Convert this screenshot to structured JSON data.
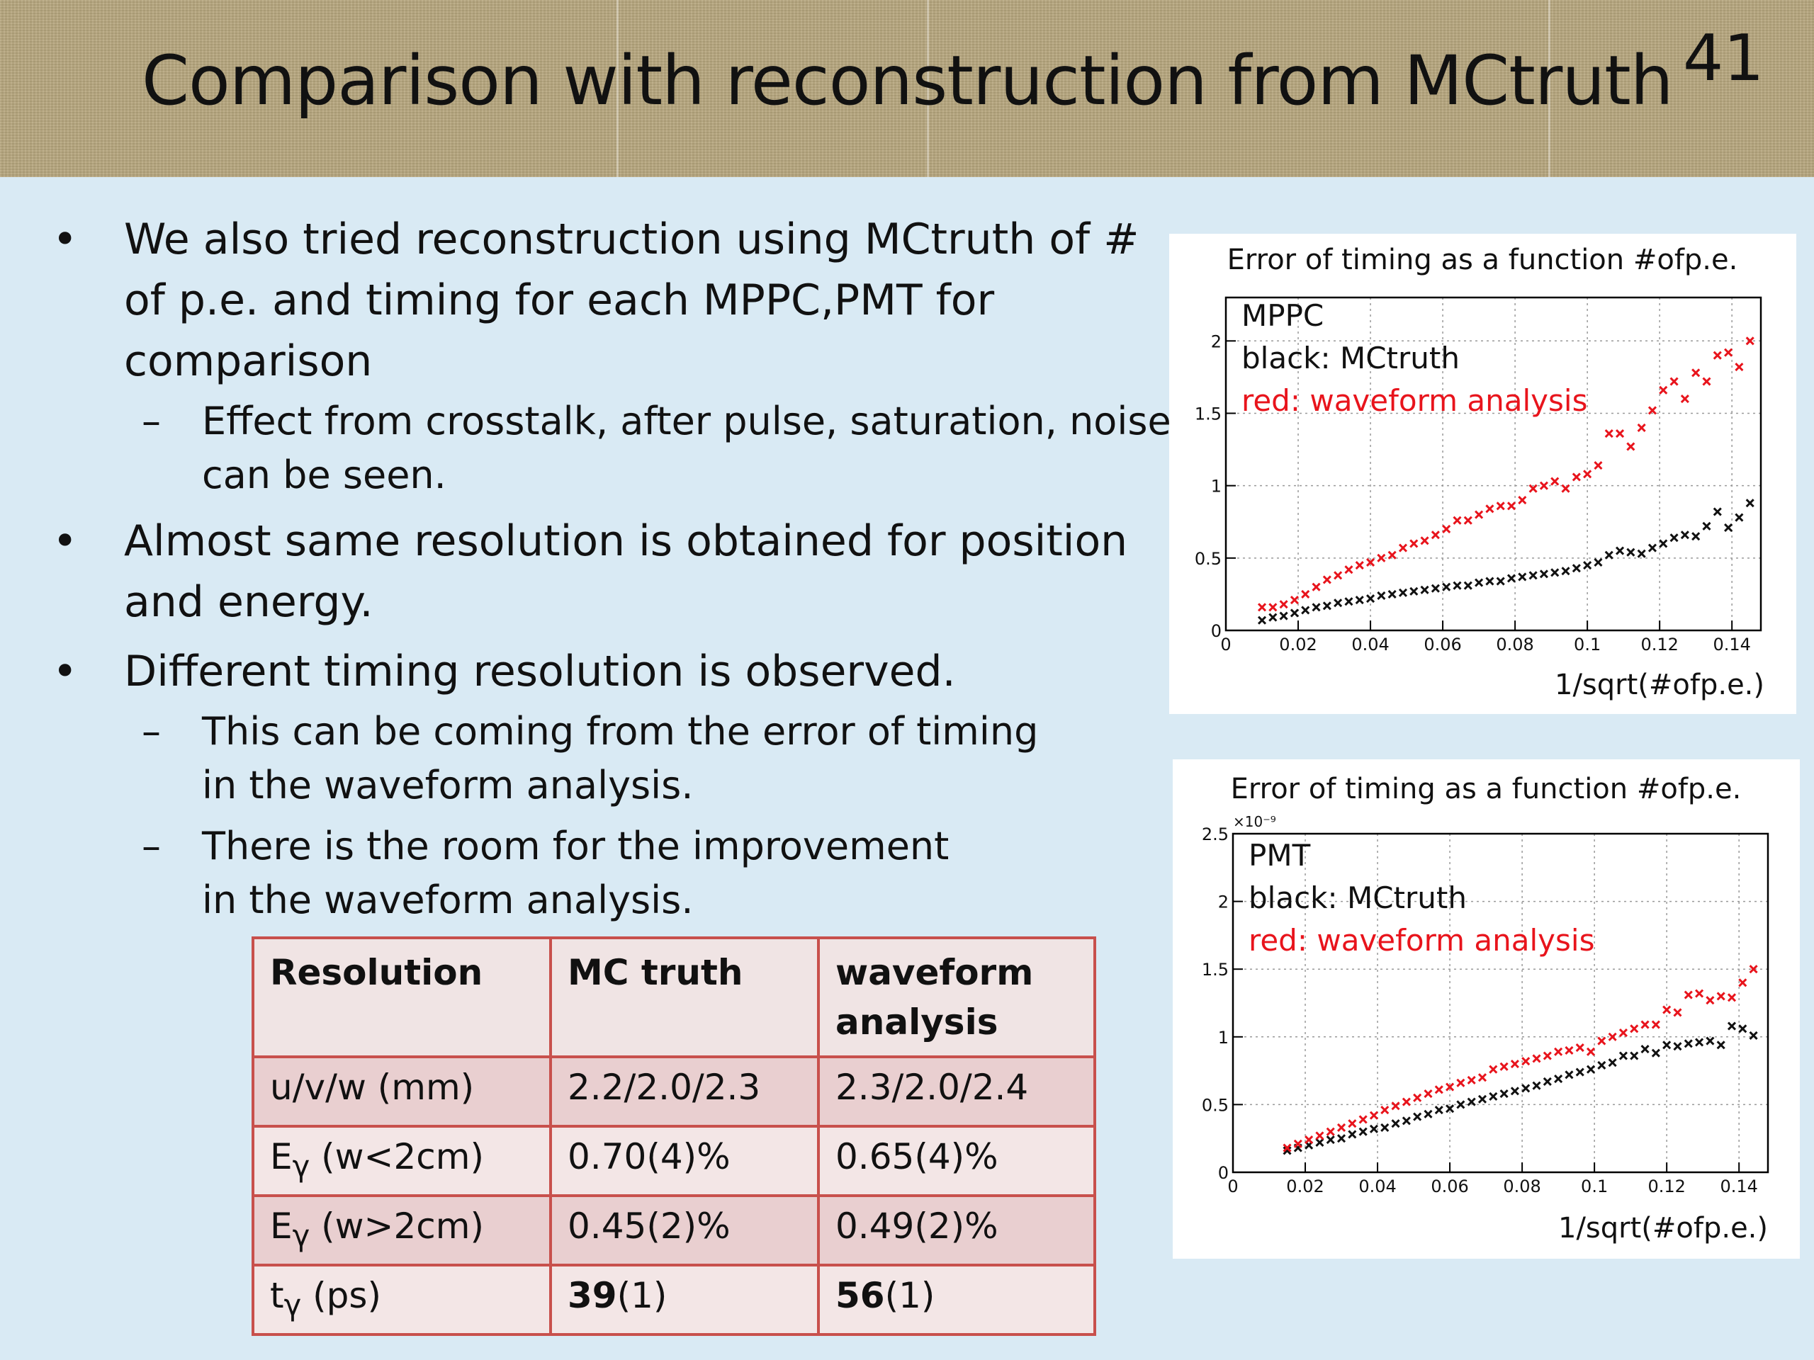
{
  "slide": {
    "title": "Comparison with reconstruction from MCtruth",
    "number": "41"
  },
  "bullets": [
    {
      "level": 1,
      "text": "We also tried reconstruction using MCtruth of # of p.e. and timing for each MPPC,PMT for comparison"
    },
    {
      "level": 2,
      "text": "Effect from crosstalk, after pulse, saturation, noise can be seen."
    },
    {
      "level": 1,
      "text": "Almost same resolution is obtained for position and energy."
    },
    {
      "level": 1,
      "text": "Different timing resolution is observed."
    },
    {
      "level": 2,
      "text": "This can be coming from the error of timing in the waveform analysis."
    },
    {
      "level": 2,
      "text": "There is the room for the improvement in the waveform analysis."
    }
  ],
  "table": {
    "headers": [
      "Resolution",
      "MC truth",
      "waveform analysis"
    ],
    "rows": [
      {
        "label": "u/v/w (mm)",
        "mc": "2.2/2.0/2.3",
        "wf": "2.3/2.0/2.4"
      },
      {
        "label_main": "E",
        "label_sub": "γ",
        "label_rest": " (w<2cm)",
        "mc": "0.70(4)%",
        "wf": "0.65(4)%"
      },
      {
        "label_main": "E",
        "label_sub": "γ",
        "label_rest": " (w>2cm)",
        "mc": "0.45(2)%",
        "wf": "0.49(2)%"
      },
      {
        "label_main": "t",
        "label_sub": "γ",
        "label_rest": " (ps)",
        "mc_bold": "39",
        "mc_rest": "(1)",
        "wf_bold": "56",
        "wf_rest": "(1)"
      }
    ]
  },
  "chart_data": [
    {
      "type": "scatter",
      "title": "Error of timing as a function #ofp.e.",
      "xlabel": "1/sqrt(#ofp.e.)",
      "ylabel": "",
      "xlim": [
        0,
        0.148
      ],
      "ylim": [
        0,
        2.3
      ],
      "xticks": [
        "0",
        "0.02",
        "0.04",
        "0.06",
        "0.08",
        "0.1",
        "0.12",
        "0.14"
      ],
      "yticks": [
        "0",
        "0.5",
        "1",
        "1.5",
        "2",
        "2.5"
      ],
      "grid": true,
      "legend": [
        "MPPC",
        "black: MCtruth",
        "red: waveform analysis"
      ],
      "series": [
        {
          "name": "MCtruth",
          "color": "#111111",
          "x": [
            0.01,
            0.013,
            0.016,
            0.019,
            0.022,
            0.025,
            0.028,
            0.031,
            0.034,
            0.037,
            0.04,
            0.043,
            0.046,
            0.049,
            0.052,
            0.055,
            0.058,
            0.061,
            0.064,
            0.067,
            0.07,
            0.073,
            0.076,
            0.079,
            0.082,
            0.085,
            0.088,
            0.091,
            0.094,
            0.097,
            0.1,
            0.103,
            0.106,
            0.109,
            0.112,
            0.115,
            0.118,
            0.121,
            0.124,
            0.127,
            0.13,
            0.133,
            0.136,
            0.139,
            0.142,
            0.145
          ],
          "y": [
            0.07,
            0.09,
            0.1,
            0.12,
            0.14,
            0.16,
            0.17,
            0.19,
            0.2,
            0.21,
            0.22,
            0.24,
            0.25,
            0.26,
            0.27,
            0.28,
            0.29,
            0.3,
            0.31,
            0.31,
            0.33,
            0.34,
            0.34,
            0.36,
            0.37,
            0.38,
            0.39,
            0.4,
            0.41,
            0.43,
            0.45,
            0.47,
            0.52,
            0.55,
            0.54,
            0.53,
            0.57,
            0.6,
            0.64,
            0.66,
            0.65,
            0.72,
            0.82,
            0.71,
            0.78,
            0.88
          ]
        },
        {
          "name": "waveform analysis",
          "color": "#e8141c",
          "x": [
            0.01,
            0.013,
            0.016,
            0.019,
            0.022,
            0.025,
            0.028,
            0.031,
            0.034,
            0.037,
            0.04,
            0.043,
            0.046,
            0.049,
            0.052,
            0.055,
            0.058,
            0.061,
            0.064,
            0.067,
            0.07,
            0.073,
            0.076,
            0.079,
            0.082,
            0.085,
            0.088,
            0.091,
            0.094,
            0.097,
            0.1,
            0.103,
            0.106,
            0.109,
            0.112,
            0.115,
            0.118,
            0.121,
            0.124,
            0.127,
            0.13,
            0.133,
            0.136,
            0.139,
            0.142,
            0.145
          ],
          "y": [
            0.16,
            0.16,
            0.18,
            0.21,
            0.25,
            0.3,
            0.35,
            0.38,
            0.42,
            0.45,
            0.47,
            0.5,
            0.52,
            0.57,
            0.6,
            0.62,
            0.66,
            0.7,
            0.76,
            0.76,
            0.8,
            0.84,
            0.86,
            0.86,
            0.9,
            0.98,
            1.0,
            1.03,
            0.98,
            1.06,
            1.08,
            1.14,
            1.36,
            1.36,
            1.27,
            1.4,
            1.52,
            1.66,
            1.72,
            1.6,
            1.78,
            1.72,
            1.9,
            1.92,
            1.82,
            2.0
          ]
        }
      ]
    },
    {
      "type": "scatter",
      "title": "Error of timing as a function #ofp.e.",
      "xlabel": "1/sqrt(#ofp.e.)",
      "ylabel": "",
      "axis_exponent": "×10⁻⁹",
      "xlim": [
        0,
        0.148
      ],
      "ylim": [
        0,
        2.5
      ],
      "xticks": [
        "0",
        "0.02",
        "0.04",
        "0.06",
        "0.08",
        "0.1",
        "0.12",
        "0.14"
      ],
      "yticks": [
        "0",
        "0.5",
        "1",
        "1.5",
        "2",
        "2.5"
      ],
      "grid": true,
      "legend": [
        "PMT",
        "black: MCtruth",
        "red: waveform analysis"
      ],
      "series": [
        {
          "name": "MCtruth",
          "color": "#111111",
          "x": [
            0.015,
            0.018,
            0.021,
            0.024,
            0.027,
            0.03,
            0.033,
            0.036,
            0.039,
            0.042,
            0.045,
            0.048,
            0.051,
            0.054,
            0.057,
            0.06,
            0.063,
            0.066,
            0.069,
            0.072,
            0.075,
            0.078,
            0.081,
            0.084,
            0.087,
            0.09,
            0.093,
            0.096,
            0.099,
            0.102,
            0.105,
            0.108,
            0.111,
            0.114,
            0.117,
            0.12,
            0.123,
            0.126,
            0.129,
            0.132,
            0.135,
            0.138,
            0.141,
            0.144
          ],
          "y": [
            0.16,
            0.18,
            0.2,
            0.22,
            0.24,
            0.25,
            0.28,
            0.3,
            0.32,
            0.33,
            0.36,
            0.38,
            0.41,
            0.43,
            0.46,
            0.47,
            0.5,
            0.52,
            0.54,
            0.56,
            0.58,
            0.6,
            0.62,
            0.64,
            0.67,
            0.69,
            0.72,
            0.74,
            0.76,
            0.79,
            0.81,
            0.86,
            0.86,
            0.91,
            0.88,
            0.94,
            0.93,
            0.95,
            0.96,
            0.97,
            0.94,
            1.08,
            1.06,
            1.01
          ]
        },
        {
          "name": "waveform analysis",
          "color": "#e8141c",
          "x": [
            0.015,
            0.018,
            0.021,
            0.024,
            0.027,
            0.03,
            0.033,
            0.036,
            0.039,
            0.042,
            0.045,
            0.048,
            0.051,
            0.054,
            0.057,
            0.06,
            0.063,
            0.066,
            0.069,
            0.072,
            0.075,
            0.078,
            0.081,
            0.084,
            0.087,
            0.09,
            0.093,
            0.096,
            0.099,
            0.102,
            0.105,
            0.108,
            0.111,
            0.114,
            0.117,
            0.12,
            0.123,
            0.126,
            0.129,
            0.132,
            0.135,
            0.138,
            0.141,
            0.144
          ],
          "y": [
            0.18,
            0.21,
            0.24,
            0.27,
            0.3,
            0.33,
            0.36,
            0.39,
            0.42,
            0.46,
            0.49,
            0.52,
            0.55,
            0.58,
            0.61,
            0.63,
            0.66,
            0.68,
            0.7,
            0.76,
            0.78,
            0.8,
            0.82,
            0.84,
            0.86,
            0.89,
            0.9,
            0.92,
            0.89,
            0.97,
            1.0,
            1.03,
            1.06,
            1.09,
            1.09,
            1.2,
            1.18,
            1.31,
            1.32,
            1.27,
            1.3,
            1.29,
            1.4,
            1.5
          ]
        }
      ]
    }
  ]
}
